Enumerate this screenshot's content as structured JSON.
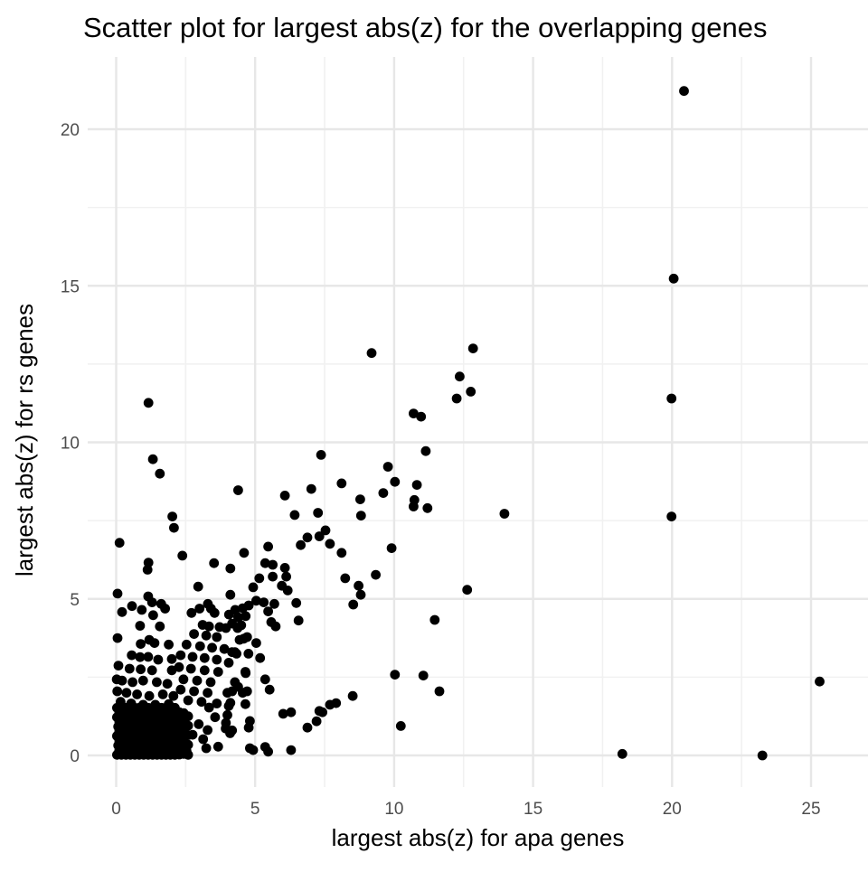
{
  "chart_data": {
    "type": "scatter",
    "title": "Scatter plot for largest abs(z) for the overlapping genes",
    "xlabel": "largest abs(z) for apa genes",
    "ylabel": "largest abs(z) for rs genes",
    "x_ticks": [
      0,
      5,
      10,
      15,
      20,
      25
    ],
    "x_tick_labels": [
      "0",
      "5",
      "10",
      "15",
      "20",
      "25"
    ],
    "y_ticks": [
      0,
      5,
      10,
      15,
      20
    ],
    "y_tick_labels": [
      "0",
      "5",
      "10",
      "15",
      "20"
    ],
    "x_minor_ticks": [
      2.5,
      7.5,
      12.5,
      17.5,
      22.5
    ],
    "y_minor_ticks": [
      2.5,
      7.5,
      12.5,
      17.5
    ],
    "xlim": [
      -0.95,
      27.1
    ],
    "ylim": [
      -1.0,
      22.3
    ],
    "grid": true,
    "legend": false,
    "point_color": "#000000",
    "background_color": "#ffffff",
    "grid_major_color": "#e7e7e7",
    "grid_minor_color": "#f1f1f1",
    "tick_label_color": "#4d4d4d",
    "points": [
      [
        20.43,
        21.22
      ],
      [
        20.06,
        15.23
      ],
      [
        19.98,
        11.4
      ],
      [
        19.98,
        7.63
      ],
      [
        13.97,
        7.72
      ],
      [
        25.31,
        2.36
      ],
      [
        18.21,
        0.05
      ],
      [
        23.25,
        0.0
      ],
      [
        12.84,
        13.0
      ],
      [
        9.19,
        12.85
      ],
      [
        12.36,
        12.1
      ],
      [
        12.76,
        11.62
      ],
      [
        12.25,
        11.4
      ],
      [
        1.16,
        11.26
      ],
      [
        10.7,
        10.92
      ],
      [
        10.97,
        10.82
      ],
      [
        11.14,
        9.72
      ],
      [
        7.37,
        9.6
      ],
      [
        1.32,
        9.46
      ],
      [
        9.78,
        9.22
      ],
      [
        1.57,
        9.0
      ],
      [
        10.03,
        8.74
      ],
      [
        10.82,
        8.64
      ],
      [
        8.11,
        8.69
      ],
      [
        7.02,
        8.51
      ],
      [
        6.07,
        8.3
      ],
      [
        4.39,
        8.47
      ],
      [
        8.78,
        8.18
      ],
      [
        9.61,
        8.38
      ],
      [
        10.73,
        8.16
      ],
      [
        11.2,
        7.9
      ],
      [
        10.7,
        7.95
      ],
      [
        6.42,
        7.68
      ],
      [
        7.26,
        7.75
      ],
      [
        8.81,
        7.66
      ],
      [
        2.02,
        7.63
      ],
      [
        2.08,
        7.27
      ],
      [
        7.53,
        7.19
      ],
      [
        6.88,
        6.96
      ],
      [
        6.64,
        6.72
      ],
      [
        7.31,
        7.0
      ],
      [
        7.69,
        6.76
      ],
      [
        0.12,
        6.79
      ],
      [
        8.11,
        6.47
      ],
      [
        9.91,
        6.62
      ],
      [
        4.6,
        6.47
      ],
      [
        5.47,
        6.67
      ],
      [
        2.38,
        6.38
      ],
      [
        1.16,
        6.16
      ],
      [
        1.13,
        5.93
      ],
      [
        3.52,
        6.14
      ],
      [
        5.36,
        6.14
      ],
      [
        5.63,
        6.09
      ],
      [
        6.07,
        5.99
      ],
      [
        4.11,
        5.97
      ],
      [
        2.95,
        5.39
      ],
      [
        0.05,
        5.17
      ],
      [
        4.11,
        5.13
      ],
      [
        1.15,
        5.08
      ],
      [
        5.15,
        5.66
      ],
      [
        5.63,
        5.71
      ],
      [
        6.12,
        5.71
      ],
      [
        4.93,
        5.37
      ],
      [
        5.96,
        5.42
      ],
      [
        6.17,
        5.27
      ],
      [
        8.24,
        5.66
      ],
      [
        8.72,
        5.42
      ],
      [
        8.8,
        5.13
      ],
      [
        9.34,
        5.77
      ],
      [
        12.63,
        5.29
      ],
      [
        0.57,
        4.77
      ],
      [
        0.21,
        4.58
      ],
      [
        0.92,
        4.65
      ],
      [
        1.29,
        4.89
      ],
      [
        1.62,
        4.84
      ],
      [
        1.76,
        4.69
      ],
      [
        1.33,
        4.48
      ],
      [
        2.71,
        4.55
      ],
      [
        3.0,
        4.69
      ],
      [
        3.3,
        4.84
      ],
      [
        3.41,
        4.69
      ],
      [
        3.54,
        4.55
      ],
      [
        3.11,
        4.17
      ],
      [
        8.53,
        4.82
      ],
      [
        5.04,
        4.94
      ],
      [
        5.31,
        4.89
      ],
      [
        5.69,
        4.84
      ],
      [
        6.48,
        4.87
      ],
      [
        4.28,
        4.65
      ],
      [
        4.55,
        4.7
      ],
      [
        4.77,
        4.79
      ],
      [
        4.06,
        4.5
      ],
      [
        4.39,
        4.41
      ],
      [
        4.66,
        4.45
      ],
      [
        4.17,
        4.21
      ],
      [
        4.5,
        4.16
      ],
      [
        3.95,
        4.07
      ],
      [
        5.47,
        4.6
      ],
      [
        5.58,
        4.26
      ],
      [
        5.74,
        4.12
      ],
      [
        6.56,
        4.31
      ],
      [
        11.46,
        4.33
      ],
      [
        4.71,
        3.78
      ],
      [
        5.04,
        3.59
      ],
      [
        4.44,
        3.69
      ],
      [
        4.17,
        3.3
      ],
      [
        4.33,
        3.25
      ],
      [
        5.18,
        3.11
      ],
      [
        4.66,
        2.63
      ],
      [
        5.36,
        2.43
      ],
      [
        5.52,
        2.1
      ],
      [
        4.39,
        2.19
      ],
      [
        4.17,
        2.05
      ],
      [
        4.55,
        2.0
      ],
      [
        10.03,
        2.58
      ],
      [
        11.05,
        2.55
      ],
      [
        11.63,
        2.05
      ],
      [
        8.51,
        1.9
      ],
      [
        7.69,
        1.62
      ],
      [
        7.91,
        1.67
      ],
      [
        7.31,
        1.42
      ],
      [
        7.42,
        1.38
      ],
      [
        6.01,
        1.33
      ],
      [
        6.29,
        1.38
      ],
      [
        6.88,
        0.89
      ],
      [
        7.21,
        1.09
      ],
      [
        4.77,
        0.89
      ],
      [
        4.17,
        0.8
      ],
      [
        3.95,
        1.04
      ],
      [
        10.24,
        0.94
      ],
      [
        4.93,
        0.17
      ],
      [
        5.36,
        0.27
      ],
      [
        5.47,
        0.12
      ],
      [
        6.29,
        0.17
      ],
      [
        0.86,
        4.14
      ],
      [
        1.57,
        4.12
      ],
      [
        0.05,
        3.75
      ],
      [
        1.19,
        3.69
      ],
      [
        0.88,
        3.56
      ],
      [
        1.38,
        3.59
      ],
      [
        1.89,
        3.54
      ],
      [
        0.56,
        3.2
      ],
      [
        0.86,
        3.14
      ],
      [
        1.15,
        3.15
      ],
      [
        1.51,
        3.06
      ],
      [
        2.0,
        3.08
      ],
      [
        0.08,
        2.87
      ],
      [
        0.48,
        2.77
      ],
      [
        0.88,
        2.75
      ],
      [
        1.29,
        2.72
      ],
      [
        2.0,
        2.72
      ],
      [
        0.02,
        2.43
      ],
      [
        0.21,
        2.39
      ],
      [
        0.59,
        2.34
      ],
      [
        0.97,
        2.39
      ],
      [
        1.46,
        2.34
      ],
      [
        1.84,
        2.29
      ],
      [
        0.04,
        2.05
      ],
      [
        0.37,
        2.0
      ],
      [
        0.75,
        1.95
      ],
      [
        1.19,
        1.9
      ],
      [
        1.68,
        1.95
      ],
      [
        2.06,
        1.9
      ],
      [
        0.16,
        1.71
      ],
      [
        0.54,
        1.66
      ],
      [
        0.97,
        1.62
      ],
      [
        1.41,
        1.62
      ],
      [
        1.89,
        1.64
      ],
      [
        3.34,
        4.12
      ],
      [
        3.72,
        4.1
      ],
      [
        4.37,
        4.07
      ],
      [
        2.8,
        3.88
      ],
      [
        3.24,
        3.83
      ],
      [
        3.62,
        3.78
      ],
      [
        4.59,
        3.73
      ],
      [
        2.53,
        3.54
      ],
      [
        3.02,
        3.49
      ],
      [
        3.45,
        3.44
      ],
      [
        3.89,
        3.4
      ],
      [
        4.27,
        3.3
      ],
      [
        4.76,
        3.25
      ],
      [
        2.32,
        3.2
      ],
      [
        2.75,
        3.15
      ],
      [
        3.18,
        3.11
      ],
      [
        3.62,
        3.06
      ],
      [
        4.05,
        2.96
      ],
      [
        2.26,
        2.82
      ],
      [
        2.69,
        2.77
      ],
      [
        3.18,
        2.72
      ],
      [
        3.67,
        2.67
      ],
      [
        4.65,
        2.67
      ],
      [
        2.42,
        2.43
      ],
      [
        2.91,
        2.39
      ],
      [
        3.4,
        2.34
      ],
      [
        4.27,
        2.34
      ],
      [
        2.32,
        2.1
      ],
      [
        2.8,
        2.05
      ],
      [
        3.29,
        2.0
      ],
      [
        4.0,
        2.0
      ],
      [
        4.71,
        2.05
      ],
      [
        2.59,
        1.76
      ],
      [
        3.07,
        1.71
      ],
      [
        3.62,
        1.66
      ],
      [
        4.11,
        1.68
      ],
      [
        4.65,
        1.64
      ],
      [
        3.34,
        1.53
      ],
      [
        4.05,
        1.58
      ],
      [
        3.56,
        1.22
      ],
      [
        4.0,
        1.29
      ],
      [
        4.81,
        1.1
      ],
      [
        2.97,
        1.0
      ],
      [
        3.29,
        0.81
      ],
      [
        3.94,
        0.86
      ],
      [
        4.1,
        0.71
      ],
      [
        3.13,
        0.52
      ],
      [
        2.75,
        0.66
      ],
      [
        3.24,
        0.23
      ],
      [
        3.67,
        0.28
      ],
      [
        4.81,
        0.23
      ],
      [
        2.53,
        0.14
      ],
      [
        0.03,
        0.02
      ],
      [
        0.19,
        0.02
      ],
      [
        0.35,
        0.02
      ],
      [
        0.51,
        0.02
      ],
      [
        0.67,
        0.02
      ],
      [
        0.83,
        0.02
      ],
      [
        0.99,
        0.02
      ],
      [
        1.15,
        0.02
      ],
      [
        1.31,
        0.02
      ],
      [
        1.47,
        0.02
      ],
      [
        1.63,
        0.02
      ],
      [
        1.79,
        0.02
      ],
      [
        1.95,
        0.02
      ],
      [
        2.11,
        0.02
      ],
      [
        0.11,
        0.17
      ],
      [
        0.27,
        0.17
      ],
      [
        0.43,
        0.17
      ],
      [
        0.59,
        0.17
      ],
      [
        0.75,
        0.17
      ],
      [
        0.91,
        0.17
      ],
      [
        1.07,
        0.17
      ],
      [
        1.23,
        0.17
      ],
      [
        1.39,
        0.17
      ],
      [
        1.55,
        0.17
      ],
      [
        1.71,
        0.17
      ],
      [
        1.87,
        0.17
      ],
      [
        2.03,
        0.17
      ],
      [
        0.07,
        0.32
      ],
      [
        0.23,
        0.32
      ],
      [
        0.39,
        0.32
      ],
      [
        0.55,
        0.32
      ],
      [
        0.71,
        0.32
      ],
      [
        0.87,
        0.32
      ],
      [
        1.03,
        0.32
      ],
      [
        1.19,
        0.32
      ],
      [
        1.35,
        0.32
      ],
      [
        1.51,
        0.32
      ],
      [
        1.67,
        0.32
      ],
      [
        1.83,
        0.32
      ],
      [
        1.99,
        0.32
      ],
      [
        2.15,
        0.32
      ],
      [
        0.11,
        0.47
      ],
      [
        0.27,
        0.47
      ],
      [
        0.43,
        0.47
      ],
      [
        0.59,
        0.47
      ],
      [
        0.75,
        0.47
      ],
      [
        0.91,
        0.47
      ],
      [
        1.07,
        0.47
      ],
      [
        1.23,
        0.47
      ],
      [
        1.39,
        0.47
      ],
      [
        1.55,
        0.47
      ],
      [
        1.71,
        0.47
      ],
      [
        1.87,
        0.47
      ],
      [
        2.03,
        0.47
      ],
      [
        0.03,
        0.62
      ],
      [
        0.19,
        0.62
      ],
      [
        0.35,
        0.62
      ],
      [
        0.51,
        0.62
      ],
      [
        0.67,
        0.62
      ],
      [
        0.83,
        0.62
      ],
      [
        0.99,
        0.62
      ],
      [
        1.15,
        0.62
      ],
      [
        1.31,
        0.62
      ],
      [
        1.47,
        0.62
      ],
      [
        1.63,
        0.62
      ],
      [
        1.79,
        0.62
      ],
      [
        1.95,
        0.62
      ],
      [
        2.11,
        0.62
      ],
      [
        0.11,
        0.77
      ],
      [
        0.27,
        0.77
      ],
      [
        0.43,
        0.77
      ],
      [
        0.59,
        0.77
      ],
      [
        0.75,
        0.77
      ],
      [
        0.91,
        0.77
      ],
      [
        1.07,
        0.77
      ],
      [
        1.23,
        0.77
      ],
      [
        1.39,
        0.77
      ],
      [
        1.55,
        0.77
      ],
      [
        1.71,
        0.77
      ],
      [
        1.87,
        0.77
      ],
      [
        2.03,
        0.77
      ],
      [
        0.07,
        0.92
      ],
      [
        0.23,
        0.92
      ],
      [
        0.39,
        0.92
      ],
      [
        0.55,
        0.92
      ],
      [
        0.71,
        0.92
      ],
      [
        0.87,
        0.92
      ],
      [
        1.03,
        0.92
      ],
      [
        1.19,
        0.92
      ],
      [
        1.35,
        0.92
      ],
      [
        1.51,
        0.92
      ],
      [
        1.67,
        0.92
      ],
      [
        1.83,
        0.92
      ],
      [
        1.99,
        0.92
      ],
      [
        2.15,
        0.92
      ],
      [
        0.11,
        1.07
      ],
      [
        0.27,
        1.07
      ],
      [
        0.43,
        1.07
      ],
      [
        0.59,
        1.07
      ],
      [
        0.75,
        1.07
      ],
      [
        0.91,
        1.07
      ],
      [
        1.07,
        1.07
      ],
      [
        1.23,
        1.07
      ],
      [
        1.39,
        1.07
      ],
      [
        1.55,
        1.07
      ],
      [
        1.71,
        1.07
      ],
      [
        1.87,
        1.07
      ],
      [
        2.03,
        1.07
      ],
      [
        0.03,
        1.22
      ],
      [
        0.19,
        1.22
      ],
      [
        0.35,
        1.22
      ],
      [
        0.51,
        1.22
      ],
      [
        0.67,
        1.22
      ],
      [
        0.83,
        1.22
      ],
      [
        0.99,
        1.22
      ],
      [
        1.15,
        1.22
      ],
      [
        1.31,
        1.22
      ],
      [
        1.47,
        1.22
      ],
      [
        1.63,
        1.22
      ],
      [
        1.79,
        1.22
      ],
      [
        1.95,
        1.22
      ],
      [
        2.11,
        1.22
      ],
      [
        0.11,
        1.37
      ],
      [
        0.27,
        1.37
      ],
      [
        0.43,
        1.37
      ],
      [
        0.59,
        1.37
      ],
      [
        0.75,
        1.37
      ],
      [
        0.91,
        1.37
      ],
      [
        1.07,
        1.37
      ],
      [
        1.23,
        1.37
      ],
      [
        1.39,
        1.37
      ],
      [
        1.55,
        1.37
      ],
      [
        1.71,
        1.37
      ],
      [
        1.87,
        1.37
      ],
      [
        2.03,
        1.37
      ],
      [
        0.03,
        1.52
      ],
      [
        0.19,
        1.52
      ],
      [
        0.35,
        1.52
      ],
      [
        0.51,
        1.52
      ],
      [
        0.67,
        1.52
      ],
      [
        0.83,
        1.52
      ],
      [
        0.99,
        1.52
      ],
      [
        1.15,
        1.52
      ],
      [
        1.31,
        1.52
      ],
      [
        1.47,
        1.52
      ],
      [
        1.63,
        1.52
      ],
      [
        1.79,
        1.52
      ],
      [
        1.95,
        1.52
      ],
      [
        2.11,
        1.52
      ],
      [
        2.27,
        0.03
      ],
      [
        2.43,
        0.05
      ],
      [
        2.59,
        0.02
      ],
      [
        2.27,
        0.18
      ],
      [
        2.43,
        0.16
      ],
      [
        2.27,
        0.33
      ],
      [
        2.43,
        0.3
      ],
      [
        2.59,
        0.34
      ],
      [
        2.27,
        0.48
      ],
      [
        2.43,
        0.45
      ],
      [
        2.27,
        0.63
      ],
      [
        2.43,
        0.6
      ],
      [
        2.59,
        0.65
      ],
      [
        2.27,
        0.78
      ],
      [
        2.43,
        0.75
      ],
      [
        2.27,
        0.93
      ],
      [
        2.43,
        0.9
      ],
      [
        2.59,
        0.95
      ],
      [
        2.27,
        1.08
      ],
      [
        2.43,
        1.05
      ],
      [
        2.27,
        1.23
      ],
      [
        2.43,
        1.2
      ],
      [
        2.59,
        1.25
      ],
      [
        2.27,
        1.38
      ],
      [
        2.43,
        1.35
      ]
    ]
  }
}
